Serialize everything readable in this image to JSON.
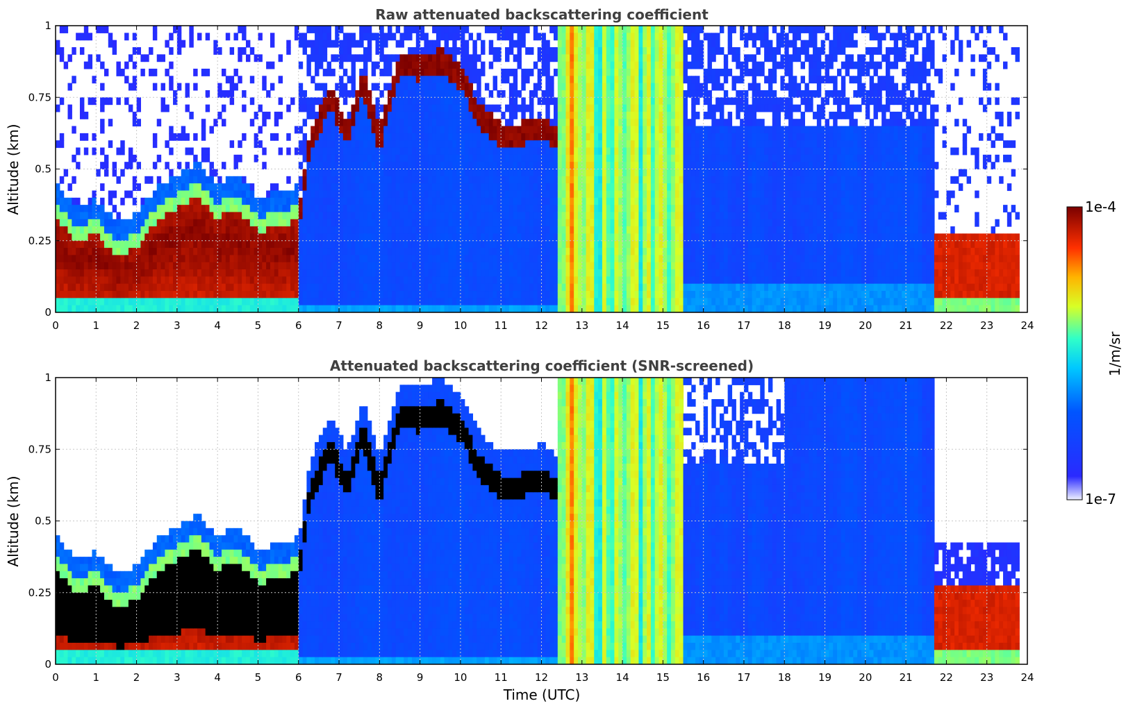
{
  "chart_data": [
    {
      "type": "heatmap",
      "title": "Raw attenuated backscattering coefficient",
      "ylabel": "Altitude (km)",
      "xlabel": "",
      "xlim": [
        0,
        24
      ],
      "ylim": [
        0,
        1
      ],
      "x_ticks": [
        "0",
        "1",
        "2",
        "3",
        "4",
        "5",
        "6",
        "7",
        "8",
        "9",
        "10",
        "11",
        "12",
        "13",
        "14",
        "15",
        "16",
        "17",
        "18",
        "19",
        "20",
        "21",
        "22",
        "23",
        "24"
      ],
      "y_ticks": [
        "0",
        "0.25",
        "0.5",
        "0.75",
        "1"
      ],
      "grid": true,
      "screened": false
    },
    {
      "type": "heatmap",
      "title": "Attenuated backscattering coefficient (SNR-screened)",
      "ylabel": "Altitude (km)",
      "xlabel": "Time (UTC)",
      "xlim": [
        0,
        24
      ],
      "ylim": [
        0,
        1
      ],
      "x_ticks": [
        "0",
        "1",
        "2",
        "3",
        "4",
        "5",
        "6",
        "7",
        "8",
        "9",
        "10",
        "11",
        "12",
        "13",
        "14",
        "15",
        "16",
        "17",
        "18",
        "19",
        "20",
        "21",
        "22",
        "23",
        "24"
      ],
      "y_ticks": [
        "0",
        "0.25",
        "0.5",
        "0.75",
        "1"
      ],
      "grid": true,
      "screened": true
    }
  ],
  "colorbar": {
    "label": "1/m/sr",
    "max_label": "1e-4",
    "min_label": "1e-7",
    "colormap": "jet",
    "scale": "log"
  }
}
